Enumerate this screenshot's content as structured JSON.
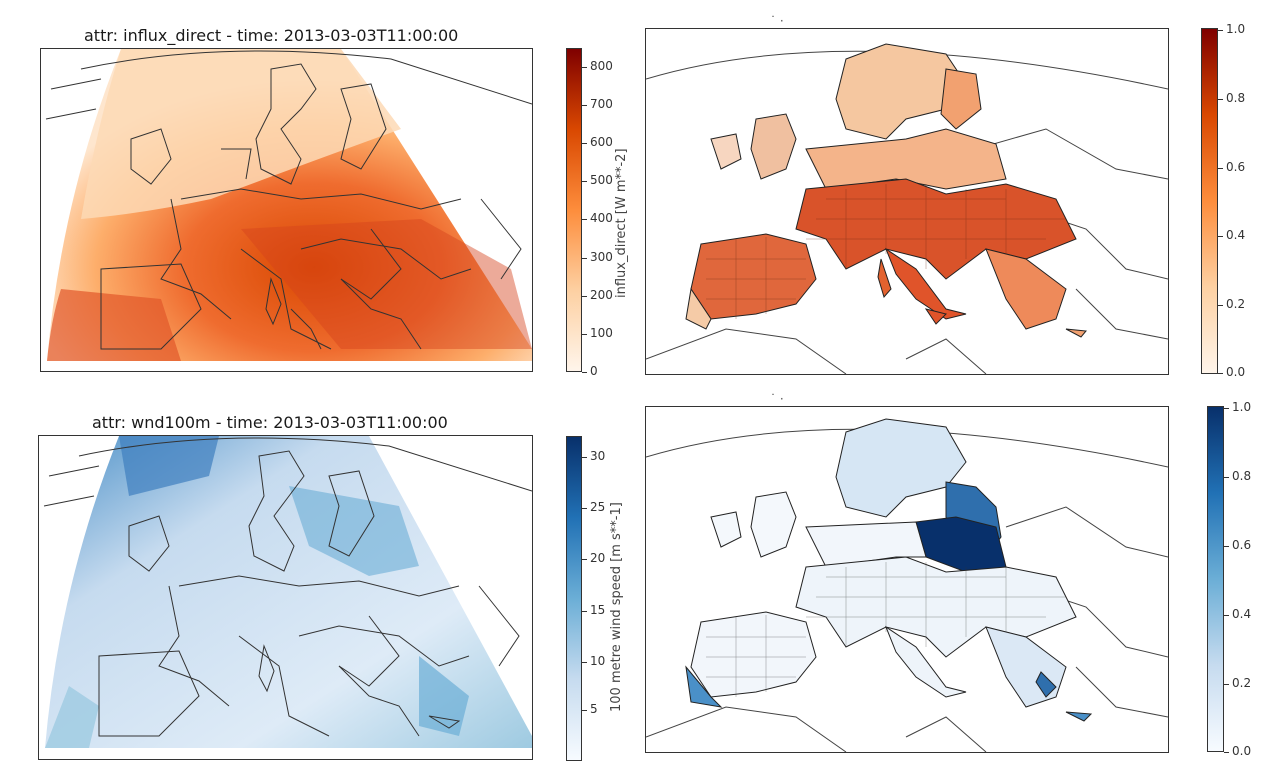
{
  "panels": [
    {
      "title": "attr: influx_direct - time: 2013-03-03T11:00:00",
      "colorbar": {
        "label": "influx_direct [W m**-2]",
        "ticks": [
          "800",
          "700",
          "600",
          "500",
          "400",
          "300",
          "200",
          "100",
          "0"
        ],
        "colors": [
          "#fff5eb",
          "#fdd0a2",
          "#fd8d3c",
          "#d94801",
          "#7f0000"
        ]
      }
    },
    {
      "title": "",
      "colorbar": {
        "label": "",
        "ticks": [
          "1.0",
          "0.8",
          "0.6",
          "0.4",
          "0.2",
          "0.0"
        ],
        "colors": [
          "#fff5eb",
          "#fdd0a2",
          "#fd8d3c",
          "#d94801",
          "#7f0000"
        ]
      }
    },
    {
      "title": "attr: wnd100m - time: 2013-03-03T11:00:00",
      "colorbar": {
        "label": "100 metre wind speed [m s**-1]",
        "ticks": [
          "30",
          "25",
          "20",
          "15",
          "10",
          "5"
        ],
        "colors": [
          "#f7fbff",
          "#c6dbef",
          "#6baed6",
          "#2171b5",
          "#08306b"
        ]
      }
    },
    {
      "title": "",
      "colorbar": {
        "label": "",
        "ticks": [
          "1.0",
          "0.8",
          "0.6",
          "0.4",
          "0.2",
          "0.0"
        ],
        "colors": [
          "#f7fbff",
          "#c6dbef",
          "#6baed6",
          "#2171b5",
          "#08306b"
        ]
      }
    }
  ]
}
